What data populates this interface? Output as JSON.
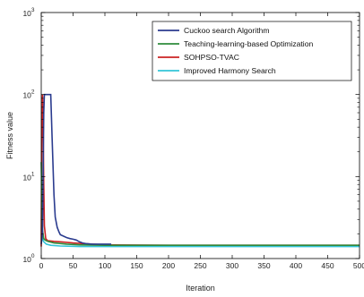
{
  "chart_data": {
    "type": "line",
    "title": "",
    "xlabel": "Iteration",
    "ylabel": "Fitness value",
    "xlim": [
      0,
      500
    ],
    "ylim": [
      1,
      1000
    ],
    "yscale": "log",
    "grid": false,
    "legend_position": "top-right",
    "x_ticks": [
      "0",
      "50",
      "100",
      "150",
      "200",
      "250",
      "300",
      "350",
      "400",
      "450",
      "500"
    ],
    "y_ticks": [
      {
        "base": "10",
        "exp": "0"
      },
      {
        "base": "10",
        "exp": "1"
      },
      {
        "base": "10",
        "exp": "2"
      },
      {
        "base": "10",
        "exp": "3"
      }
    ],
    "series": [
      {
        "name": "Cuckoo search Algorithm",
        "color": "#2b3c8f",
        "x": [
          0,
          2,
          4,
          5,
          15,
          17,
          20,
          22,
          25,
          28,
          30,
          40,
          45,
          50,
          55,
          60,
          65,
          70,
          80,
          90,
          100,
          110
        ],
        "y": [
          1.5,
          2.0,
          60,
          100,
          100,
          30,
          6,
          3.2,
          2.4,
          2.1,
          1.95,
          1.8,
          1.75,
          1.72,
          1.68,
          1.6,
          1.55,
          1.52,
          1.5,
          1.5,
          1.5,
          1.5
        ]
      },
      {
        "name": "Teaching-learning-based Optimization",
        "color": "#2e8b3c",
        "x": [
          0,
          2,
          4,
          6,
          10,
          20,
          40,
          60,
          100,
          200,
          300,
          400,
          500
        ],
        "y": [
          15,
          2.2,
          1.75,
          1.68,
          1.62,
          1.55,
          1.5,
          1.47,
          1.45,
          1.45,
          1.45,
          1.45,
          1.45
        ]
      },
      {
        "name": "SOHPSO-TVAC",
        "color": "#cc2222",
        "x": [
          0,
          1,
          2,
          3,
          4,
          5,
          7,
          10,
          20,
          30,
          50,
          80,
          100,
          200,
          300,
          400,
          500
        ],
        "y": [
          1.4,
          50,
          100,
          40,
          8,
          2.5,
          1.75,
          1.65,
          1.62,
          1.6,
          1.55,
          1.5,
          1.47,
          1.45,
          1.45,
          1.45,
          1.45
        ]
      },
      {
        "name": "Improved Harmony Search",
        "color": "#33c4d8",
        "x": [
          0,
          2,
          4,
          8,
          15,
          30,
          60,
          100,
          200,
          300,
          400,
          500
        ],
        "y": [
          2.0,
          1.75,
          1.6,
          1.5,
          1.45,
          1.42,
          1.4,
          1.4,
          1.4,
          1.4,
          1.4,
          1.4
        ]
      }
    ]
  }
}
